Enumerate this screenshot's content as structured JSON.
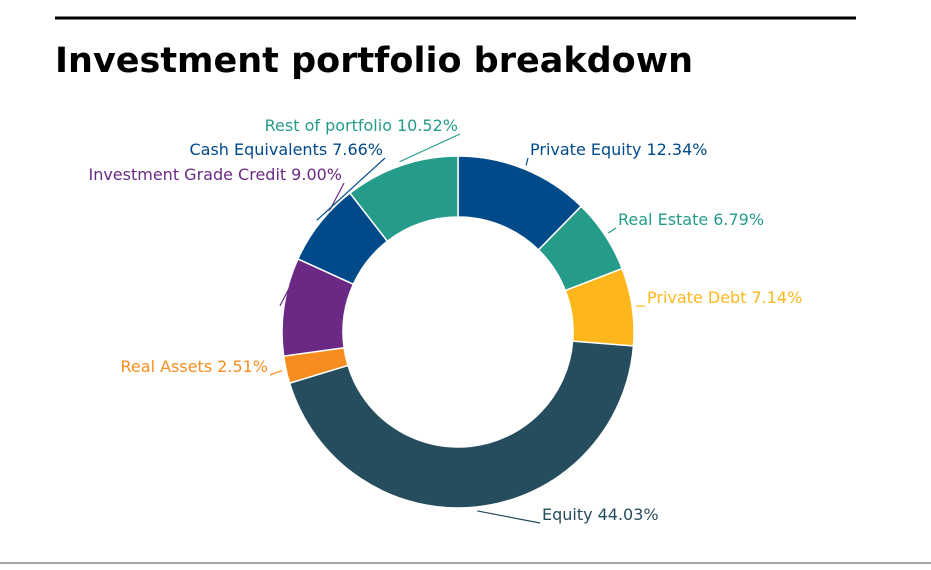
{
  "chart_data": {
    "type": "donut",
    "title": "Investment portfolio breakdown",
    "categories": [
      "Private Equity",
      "Real Estate",
      "Private Debt",
      "Equity",
      "Real Assets",
      "Investment Grade Credit",
      "Cash Equivalents",
      "Rest of portfolio"
    ],
    "values": [
      12.34,
      6.79,
      7.14,
      44.03,
      2.51,
      9.0,
      7.66,
      10.52
    ],
    "value_labels": [
      "12.34%",
      "6.79%",
      "7.14%",
      "44.03%",
      "2.51%",
      "9.00%",
      "7.66%",
      "10.52%"
    ],
    "colors": [
      "#004a8a",
      "#259b8a",
      "#fdb71d",
      "#264d5e",
      "#f78d1e",
      "#6a2a84",
      "#004a8a",
      "#259b8a"
    ]
  }
}
